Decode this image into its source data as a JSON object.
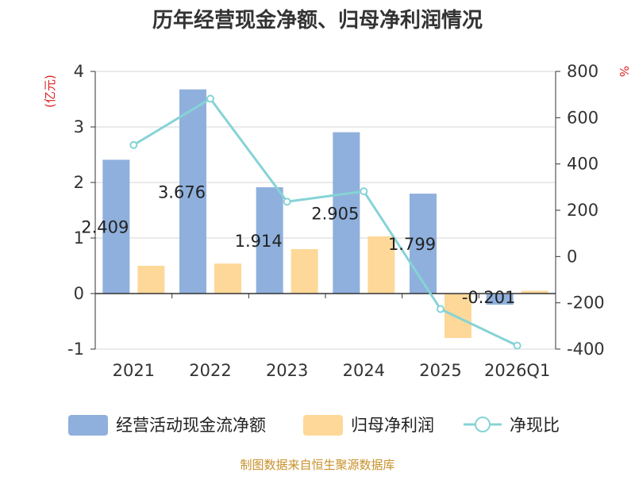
{
  "chart_data": {
    "type": "bar+line",
    "title": "历年经营现金净额、归母净利润情况",
    "categories": [
      "2021",
      "2022",
      "2023",
      "2024",
      "2025",
      "2026Q1"
    ],
    "left_axis": {
      "unit_label": "(亿元)",
      "min": -1,
      "max": 4,
      "ticks": [
        "4",
        "3",
        "2",
        "1",
        "0",
        "-1"
      ]
    },
    "right_axis": {
      "unit_label": "%",
      "min": -400,
      "max": 800,
      "ticks": [
        "800",
        "600",
        "400",
        "200",
        "0",
        "-200",
        "-400"
      ]
    },
    "series": [
      {
        "name": "经营活动现金流净额",
        "type": "bar",
        "axis": "left",
        "color": "#8fb0dd",
        "values": [
          2.409,
          3.676,
          1.914,
          2.905,
          1.799,
          -0.201
        ],
        "labels": [
          "2.409",
          "3.676",
          "1.914",
          "2.905",
          "1.799",
          "-0.201"
        ]
      },
      {
        "name": "归母净利润",
        "type": "bar",
        "axis": "left",
        "color": "#fdd898",
        "values": [
          0.5,
          0.54,
          0.8,
          1.03,
          -0.8,
          0.05
        ]
      },
      {
        "name": "净现比",
        "type": "line",
        "axis": "right",
        "color": "#86d3d6",
        "values": [
          482,
          682,
          237,
          282,
          -227,
          -385
        ]
      }
    ]
  },
  "source": "制图数据来自恒生聚源数据库"
}
